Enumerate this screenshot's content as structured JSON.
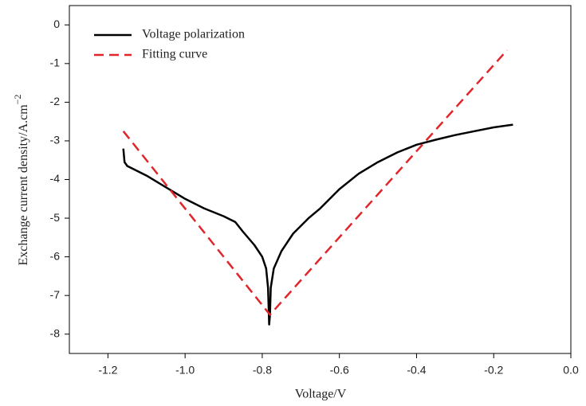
{
  "chart_data": {
    "type": "line",
    "x_label": "Voltage/V",
    "y_label": "Exchange current density/A.cm",
    "y_label_superscript": "−2",
    "xlim": [
      -1.3,
      0.0
    ],
    "ylim": [
      -8.5,
      0.5
    ],
    "xticks": [
      -1.2,
      {
        "value": -1,
        "label": "-1.0"
      },
      -0.8,
      -0.6,
      -0.4,
      -0.2,
      {
        "value": 0,
        "label": "0.0"
      }
    ],
    "yticks": [
      0,
      -1,
      -2,
      -3,
      -4,
      -5,
      -6,
      -7,
      -8
    ],
    "legend": "upper left",
    "series": [
      {
        "name": "Voltage polarization",
        "color": "#000000",
        "dash": false,
        "x": [
          -1.16,
          -1.157,
          -1.15,
          -1.1,
          -1.05,
          -1.0,
          -0.95,
          -0.9,
          -0.87,
          -0.85,
          -0.82,
          -0.8,
          -0.79,
          -0.785,
          -0.782,
          -0.78,
          -0.778,
          -0.77,
          -0.75,
          -0.72,
          -0.68,
          -0.65,
          -0.6,
          -0.55,
          -0.5,
          -0.45,
          -0.4,
          -0.35,
          -0.3,
          -0.25,
          -0.2,
          -0.15
        ],
        "values": [
          -3.2,
          -3.55,
          -3.65,
          -3.9,
          -4.2,
          -4.5,
          -4.75,
          -4.95,
          -5.1,
          -5.35,
          -5.7,
          -6.0,
          -6.3,
          -6.8,
          -7.75,
          -7.5,
          -6.8,
          -6.3,
          -5.85,
          -5.4,
          -5.0,
          -4.75,
          -4.25,
          -3.85,
          -3.55,
          -3.3,
          -3.1,
          -2.97,
          -2.85,
          -2.75,
          -2.65,
          -2.58
        ]
      },
      {
        "name": "Fitting curve",
        "color": "#e0262b",
        "dash": true,
        "x": [
          -1.16,
          -0.78,
          -0.165
        ],
        "values": [
          -2.75,
          -7.5,
          -0.65
        ]
      }
    ]
  }
}
